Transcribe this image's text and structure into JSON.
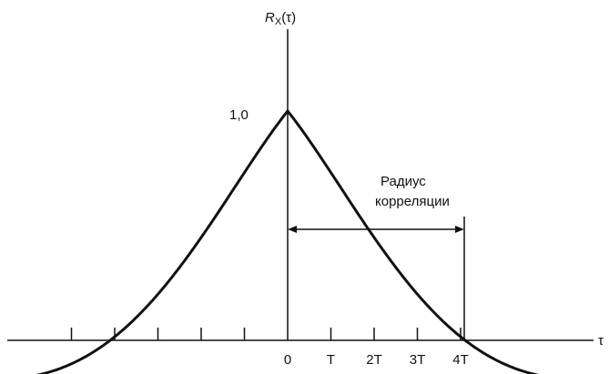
{
  "axes": {
    "y_label": {
      "main": "R",
      "sub": "X",
      "arg": "(τ)"
    },
    "x_label": "τ",
    "y_tick": "1,0",
    "x_ticks": [
      "0",
      "T",
      "2T",
      "3T",
      "4T"
    ]
  },
  "annotation": {
    "line1": "Радиус",
    "line2": "корреляции"
  }
}
